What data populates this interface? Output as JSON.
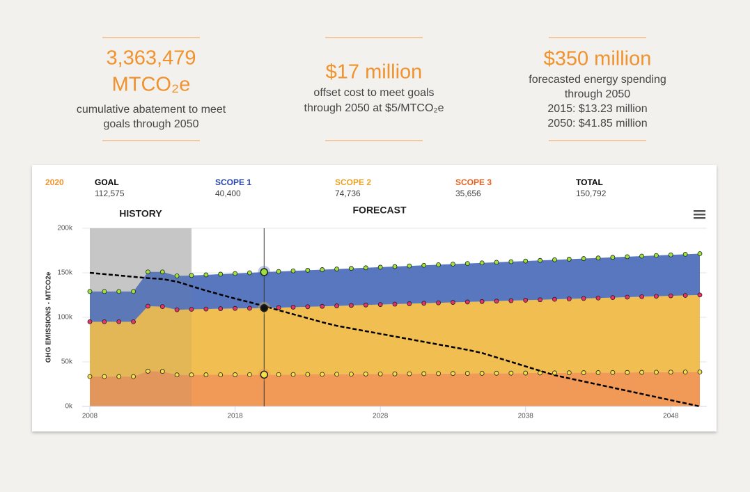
{
  "stats": [
    {
      "headline": [
        "3,363,479",
        "MTCO₂e"
      ],
      "lines": [
        "cumulative abatement to meet",
        "goals through 2050"
      ]
    },
    {
      "headline": [
        "$17 million"
      ],
      "lines": [
        "offset cost to meet goals",
        "through 2050 at $5/MTCO₂e"
      ]
    },
    {
      "headline": [
        "$350 million"
      ],
      "lines": [
        "forecasted energy spending",
        "through 2050",
        "2015: $13.23 million",
        "2050: $41.85 million"
      ]
    }
  ],
  "chart_data": {
    "type": "area",
    "stacked": true,
    "selected": 2020,
    "y_label": "GHG EMISSIONS - MTCO2e",
    "history": {
      "label": "HISTORY",
      "range": [
        2008,
        2015
      ]
    },
    "forecast": {
      "label": "FORECAST"
    },
    "x": [
      2008,
      2009,
      2010,
      2011,
      2012,
      2013,
      2014,
      2015,
      2016,
      2017,
      2018,
      2019,
      2020,
      2021,
      2022,
      2023,
      2024,
      2025,
      2026,
      2027,
      2028,
      2029,
      2030,
      2031,
      2032,
      2033,
      2034,
      2035,
      2036,
      2037,
      2038,
      2039,
      2040,
      2041,
      2042,
      2043,
      2044,
      2045,
      2046,
      2047,
      2048,
      2049,
      2050
    ],
    "xlim": [
      2008,
      2050
    ],
    "xticks": [
      2008,
      2018,
      2028,
      2038,
      2048
    ],
    "ylim": [
      0,
      200000
    ],
    "yticks": [
      {
        "value": 0,
        "label": "0k"
      },
      {
        "value": 50000,
        "label": "50k"
      },
      {
        "value": 100000,
        "label": "100k"
      },
      {
        "value": 150000,
        "label": "150k"
      },
      {
        "value": 200000,
        "label": "200k"
      }
    ],
    "grid": true,
    "series": [
      {
        "name": "GOAL",
        "kind": "line",
        "dash": true,
        "color": "#000000",
        "selected_label": "112,575",
        "values": [
          150000,
          148500,
          147000,
          145500,
          144000,
          143000,
          140000,
          135000,
          130000,
          125500,
          121000,
          117000,
          112575,
          108000,
          103500,
          99000,
          94500,
          90500,
          87500,
          84500,
          81500,
          78500,
          75500,
          72500,
          69500,
          66500,
          63500,
          60000,
          55000,
          50000,
          45000,
          40000,
          35000,
          31500,
          28000,
          24500,
          21000,
          17500,
          14000,
          10500,
          7000,
          3500,
          0
        ]
      },
      {
        "name": "SCOPE 1",
        "kind": "area",
        "color": "#4a6bb8",
        "label_color": "#2a46a8",
        "marker_color": "#9be23a",
        "selected_label": "40,400",
        "values": [
          34000,
          34000,
          34000,
          34000,
          38500,
          39000,
          38000,
          38000,
          38400,
          38800,
          39200,
          39800,
          40400,
          40600,
          40800,
          41000,
          41200,
          41400,
          41600,
          41800,
          42000,
          42200,
          42400,
          42600,
          42800,
          43000,
          43200,
          43400,
          43600,
          43800,
          44000,
          44200,
          44400,
          44600,
          44800,
          45000,
          45200,
          45400,
          45600,
          45800,
          46000,
          46200,
          46400
        ]
      },
      {
        "name": "SCOPE 2",
        "kind": "area",
        "color": "#f0b942",
        "label_color": "#eaa226",
        "marker_color": "#e8336a",
        "selected_label": "74,736",
        "values": [
          61500,
          61500,
          61500,
          61500,
          73000,
          72700,
          73100,
          73550,
          73800,
          74150,
          74400,
          74570,
          74736,
          75130,
          75520,
          75910,
          76300,
          76690,
          77080,
          77470,
          77860,
          78250,
          78640,
          79030,
          79420,
          79810,
          80200,
          80590,
          80980,
          81370,
          81760,
          82150,
          82540,
          82930,
          83320,
          83710,
          84100,
          84490,
          84880,
          85270,
          85660,
          86050,
          86440
        ]
      },
      {
        "name": "SCOPE 3",
        "kind": "area",
        "color": "#f0914a",
        "label_color": "#e8601e",
        "marker_color": "#f5e04a",
        "selected_label": "35,656",
        "values": [
          33500,
          33500,
          33500,
          33500,
          39500,
          39300,
          35400,
          35450,
          35500,
          35550,
          35600,
          35630,
          35656,
          35750,
          35850,
          35950,
          36050,
          36150,
          36250,
          36350,
          36450,
          36550,
          36650,
          36750,
          36850,
          36950,
          37050,
          37150,
          37250,
          37350,
          37450,
          37550,
          37650,
          37750,
          37850,
          37950,
          38050,
          38150,
          38250,
          38350,
          38450,
          38550,
          38650
        ]
      }
    ],
    "total": {
      "name": "TOTAL",
      "value": "150,792"
    }
  }
}
